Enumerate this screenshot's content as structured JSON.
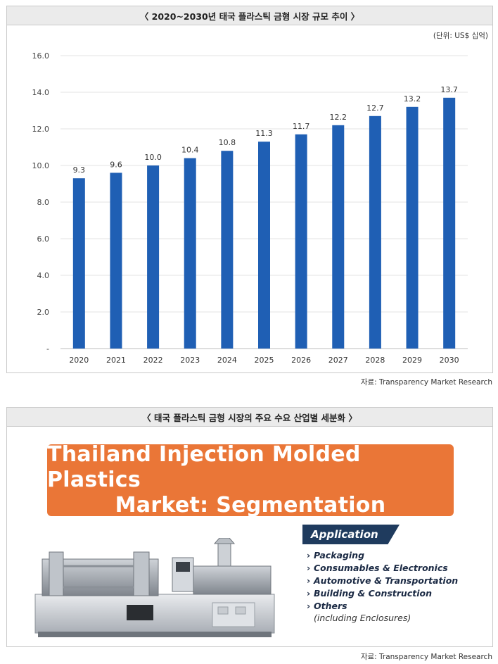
{
  "panel1": {
    "title": "〈 2020~2030년 태국 플라스틱 금형 시장 규모 추이 〉",
    "unit": "(단위: US$ 십억)",
    "source": "자료: Transparency Market Research"
  },
  "chart_data": {
    "type": "bar",
    "categories": [
      "2020",
      "2021",
      "2022",
      "2023",
      "2024",
      "2025",
      "2026",
      "2027",
      "2028",
      "2029",
      "2030"
    ],
    "values": [
      9.3,
      9.6,
      10.0,
      10.4,
      10.8,
      11.3,
      11.7,
      12.2,
      12.7,
      13.2,
      13.7
    ],
    "value_labels": [
      "9.3",
      "9.6",
      "10.0",
      "10.4",
      "10.8",
      "11.3",
      "11.7",
      "12.2",
      "12.7",
      "13.2",
      "13.7"
    ],
    "yticks": [
      "-",
      "2.0",
      "4.0",
      "6.0",
      "8.0",
      "10.0",
      "12.0",
      "14.0",
      "16.0"
    ],
    "ylim": [
      0,
      16
    ],
    "grid": true,
    "bar_color": "#1f5fb4"
  },
  "panel2": {
    "title": "〈 태국 플라스틱 금형 시장의 주요 수요 산업별 세분화 〉",
    "banner_line1": "Thailand Injection Molded Plastics",
    "banner_line2": "Market: Segmentation",
    "application_label": "Application",
    "items": [
      "Packaging",
      "Consumables & Electronics",
      "Automotive & Transportation",
      "Building & Construction",
      "Others"
    ],
    "note": "(including Enclosures)",
    "source": "자료: Transparency Market Research"
  },
  "colors": {
    "banner": "#ea7637",
    "tag": "#1f3b5e"
  }
}
